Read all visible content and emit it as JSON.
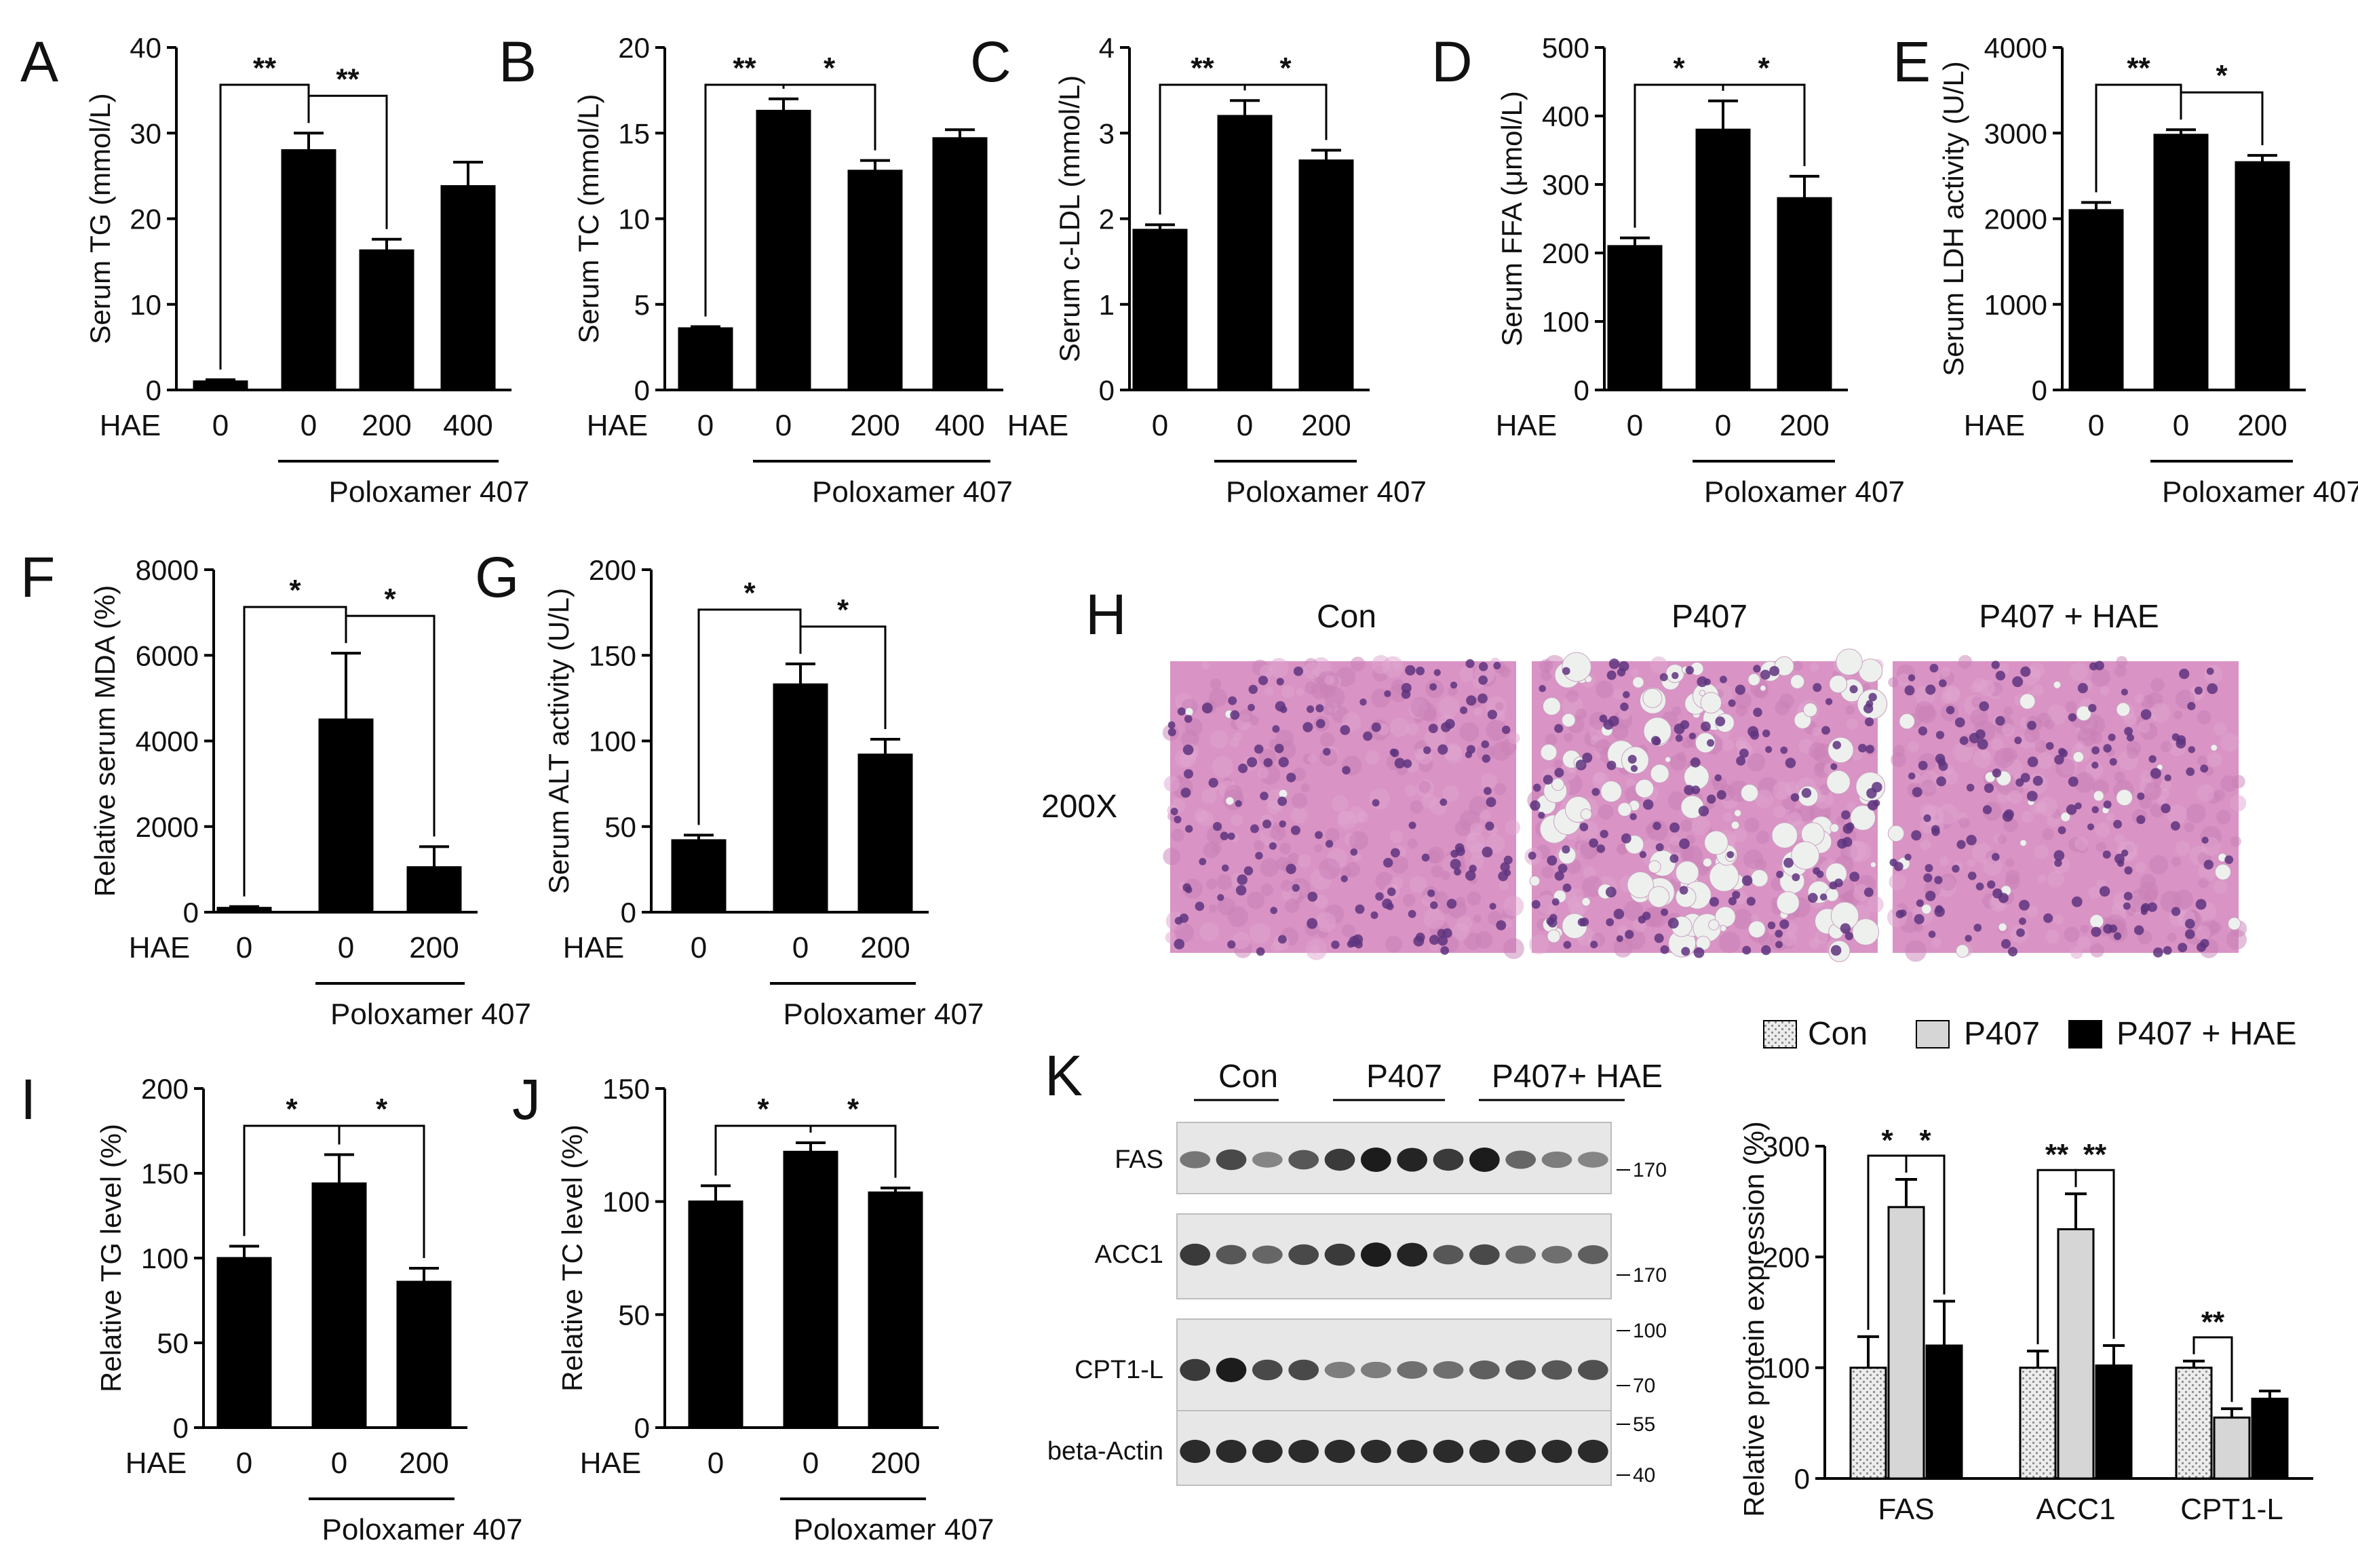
{
  "colors": {
    "black": "#000000",
    "light_gray": "#d6d6d6",
    "dotted": "#e4e4e4",
    "he_pink": "#d48cc0",
    "he_nucleus": "#6a3b8e"
  },
  "chart_data": [
    {
      "panel": "A",
      "type": "bar",
      "ylabel": "Serum TG (mmol/L)",
      "ylim": [
        0,
        40
      ],
      "yticks": [
        0,
        10,
        20,
        30,
        40
      ],
      "row_label": "HAE",
      "categories": [
        "0",
        "0",
        "200",
        "400"
      ],
      "values": [
        1,
        28,
        16.3,
        23.8
      ],
      "errors": [
        0.2,
        2,
        1.3,
        2.8
      ],
      "condition": "Poloxamer 407",
      "condition_span": [
        1,
        3
      ],
      "brackets": [
        {
          "from": 0,
          "to": 1,
          "label": "**"
        },
        {
          "from": 1,
          "to": 2,
          "label": "**"
        }
      ]
    },
    {
      "panel": "B",
      "type": "bar",
      "ylabel": "Serum TC (mmol/L)",
      "ylim": [
        0,
        20
      ],
      "yticks": [
        0,
        5,
        10,
        15,
        20
      ],
      "row_label": "HAE",
      "categories": [
        "0",
        "0",
        "200",
        "400"
      ],
      "values": [
        3.6,
        16.3,
        12.8,
        14.7
      ],
      "errors": [
        0.1,
        0.7,
        0.6,
        0.5
      ],
      "condition": "Poloxamer 407",
      "condition_span": [
        1,
        3
      ],
      "brackets": [
        {
          "from": 0,
          "to": 1,
          "label": "**"
        },
        {
          "from": 1,
          "to": 2,
          "label": "*"
        }
      ]
    },
    {
      "panel": "C",
      "type": "bar",
      "ylabel": "Serum c-LDL (mmol/L)",
      "ylim": [
        0,
        4
      ],
      "yticks": [
        0,
        1,
        2,
        3,
        4
      ],
      "row_label": "HAE",
      "categories": [
        "0",
        "0",
        "200"
      ],
      "values": [
        1.87,
        3.2,
        2.68
      ],
      "errors": [
        0.06,
        0.18,
        0.12
      ],
      "condition": "Poloxamer 407",
      "condition_span": [
        1,
        2
      ],
      "brackets": [
        {
          "from": 0,
          "to": 1,
          "label": "**"
        },
        {
          "from": 1,
          "to": 2,
          "label": "*"
        }
      ]
    },
    {
      "panel": "D",
      "type": "bar",
      "ylabel": "Serum FFA (μmol/L)",
      "ylim": [
        0,
        500
      ],
      "yticks": [
        0,
        100,
        200,
        300,
        400,
        500
      ],
      "row_label": "HAE",
      "categories": [
        "0",
        "0",
        "200"
      ],
      "values": [
        210,
        380,
        280
      ],
      "errors": [
        12,
        42,
        32
      ],
      "condition": "Poloxamer 407",
      "condition_span": [
        1,
        2
      ],
      "brackets": [
        {
          "from": 0,
          "to": 1,
          "label": "*"
        },
        {
          "from": 1,
          "to": 2,
          "label": "*"
        }
      ]
    },
    {
      "panel": "E",
      "type": "bar",
      "ylabel": "Serum LDH activity (U/L)",
      "ylim": [
        0,
        4000
      ],
      "yticks": [
        0,
        1000,
        2000,
        3000,
        4000
      ],
      "row_label": "HAE",
      "categories": [
        "0",
        "0",
        "200"
      ],
      "values": [
        2100,
        2980,
        2660
      ],
      "errors": [
        90,
        60,
        80
      ],
      "condition": "Poloxamer 407",
      "condition_span": [
        1,
        2
      ],
      "brackets": [
        {
          "from": 0,
          "to": 1,
          "label": "**"
        },
        {
          "from": 1,
          "to": 2,
          "label": "*"
        }
      ]
    },
    {
      "panel": "F",
      "type": "bar",
      "ylabel": "Relative serum MDA (%)",
      "ylim": [
        0,
        8000
      ],
      "yticks": [
        0,
        2000,
        4000,
        6000,
        8000
      ],
      "row_label": "HAE",
      "categories": [
        "0",
        "0",
        "200"
      ],
      "values": [
        100,
        4500,
        1050
      ],
      "errors": [
        30,
        1550,
        480
      ],
      "condition": "Poloxamer 407",
      "condition_span": [
        1,
        2
      ],
      "brackets": [
        {
          "from": 0,
          "to": 1,
          "label": "*"
        },
        {
          "from": 1,
          "to": 2,
          "label": "*"
        }
      ]
    },
    {
      "panel": "G",
      "type": "bar",
      "ylabel": "Serum ALT activity (U/L)",
      "ylim": [
        0,
        200
      ],
      "yticks": [
        0,
        50,
        100,
        150,
        200
      ],
      "row_label": "HAE",
      "categories": [
        "0",
        "0",
        "200"
      ],
      "values": [
        42,
        133,
        92
      ],
      "errors": [
        3,
        12,
        9
      ],
      "condition": "Poloxamer 407",
      "condition_span": [
        1,
        2
      ],
      "brackets": [
        {
          "from": 0,
          "to": 1,
          "label": "*"
        },
        {
          "from": 1,
          "to": 2,
          "label": "*"
        }
      ]
    },
    {
      "panel": "I",
      "type": "bar",
      "ylabel": "Relative TG level (%)",
      "ylim": [
        0,
        200
      ],
      "yticks": [
        0,
        50,
        100,
        150,
        200
      ],
      "row_label": "HAE",
      "categories": [
        "0",
        "0",
        "200"
      ],
      "values": [
        100,
        144,
        86
      ],
      "errors": [
        7,
        17,
        8
      ],
      "condition": "Poloxamer 407",
      "condition_span": [
        1,
        2
      ],
      "brackets": [
        {
          "from": 0,
          "to": 1,
          "label": "*"
        },
        {
          "from": 1,
          "to": 2,
          "label": "*"
        }
      ]
    },
    {
      "panel": "J",
      "type": "bar",
      "ylabel": "Relative TC level (%)",
      "ylim": [
        0,
        150
      ],
      "yticks": [
        0,
        50,
        100,
        150
      ],
      "row_label": "HAE",
      "categories": [
        "0",
        "0",
        "200"
      ],
      "values": [
        100,
        122,
        104
      ],
      "errors": [
        7,
        4,
        2
      ],
      "condition": "Poloxamer 407",
      "condition_span": [
        1,
        2
      ],
      "brackets": [
        {
          "from": 0,
          "to": 1,
          "label": "*"
        },
        {
          "from": 1,
          "to": 2,
          "label": "*"
        }
      ]
    },
    {
      "panel": "K",
      "type": "bar",
      "ylabel": "Relative protein expression (%)",
      "ylim": [
        0,
        300
      ],
      "yticks": [
        0,
        100,
        200,
        300
      ],
      "categories": [
        "FAS",
        "ACC1",
        "CPT1-L"
      ],
      "legend_position": "top",
      "series": [
        {
          "name": "Con",
          "fill": "dotted",
          "values": [
            100,
            100,
            100
          ],
          "errors": [
            28,
            15,
            6
          ]
        },
        {
          "name": "P407",
          "fill": "light_gray",
          "values": [
            245,
            225,
            55
          ],
          "errors": [
            25,
            32,
            8
          ]
        },
        {
          "name": "P407 + HAE",
          "fill": "black",
          "values": [
            120,
            102,
            72
          ],
          "errors": [
            40,
            18,
            7
          ]
        }
      ],
      "brackets": [
        {
          "category": 0,
          "from": 0,
          "to": 1,
          "label": "*"
        },
        {
          "category": 0,
          "from": 1,
          "to": 2,
          "label": "*"
        },
        {
          "category": 1,
          "from": 0,
          "to": 1,
          "label": "**"
        },
        {
          "category": 1,
          "from": 1,
          "to": 2,
          "label": "**"
        },
        {
          "category": 2,
          "from": 0,
          "to": 1,
          "label": "**"
        }
      ]
    }
  ],
  "histology": {
    "panel": "H",
    "magnification": "200X",
    "images": [
      {
        "label": "Con",
        "fat_droplets": 0.02
      },
      {
        "label": "P407",
        "fat_droplets": 0.55
      },
      {
        "label": "P407 + HAE",
        "fat_droplets": 0.12
      }
    ]
  },
  "western_blot": {
    "panel": "K",
    "groups": [
      "Con",
      "P407",
      "P407+ HAE"
    ],
    "lanes_per_group": 4,
    "rows": [
      {
        "protein": "FAS",
        "markers": [
          "170"
        ],
        "intensity": [
          0.4,
          0.7,
          0.3,
          0.6,
          0.8,
          1.0,
          0.95,
          0.8,
          1.0,
          0.5,
          0.35,
          0.3
        ]
      },
      {
        "protein": "ACC1",
        "markers": [
          "170"
        ],
        "intensity": [
          0.8,
          0.6,
          0.5,
          0.7,
          0.8,
          1.0,
          0.95,
          0.6,
          0.7,
          0.5,
          0.45,
          0.55
        ]
      },
      {
        "protein": "CPT1-L",
        "markers": [
          "100",
          "70"
        ],
        "intensity": [
          0.8,
          1.0,
          0.7,
          0.7,
          0.35,
          0.35,
          0.45,
          0.45,
          0.55,
          0.6,
          0.6,
          0.65
        ]
      },
      {
        "protein": "beta-Actin",
        "markers": [
          "55",
          "40"
        ],
        "intensity": [
          0.9,
          0.9,
          0.9,
          0.9,
          0.9,
          0.9,
          0.9,
          0.9,
          0.9,
          0.9,
          0.9,
          0.9
        ]
      }
    ]
  }
}
